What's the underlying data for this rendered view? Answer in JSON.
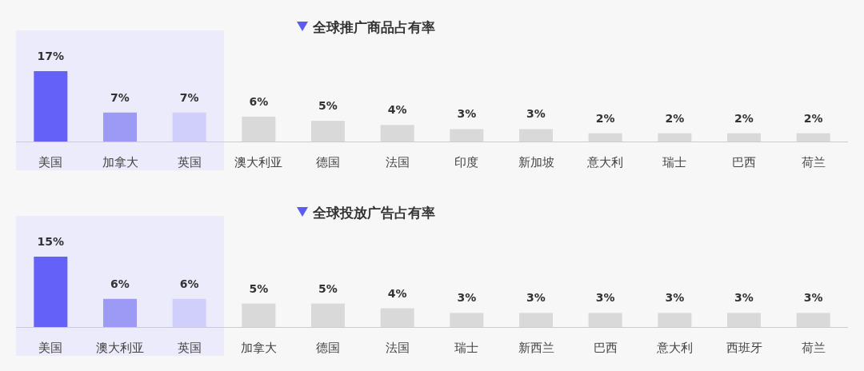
{
  "chart_data": [
    {
      "type": "bar",
      "title": "全球推广商品占有率",
      "categories": [
        "美国",
        "加拿大",
        "英国",
        "澳大利亚",
        "德国",
        "法国",
        "印度",
        "新加坡",
        "意大利",
        "瑞士",
        "巴西",
        "荷兰"
      ],
      "values": [
        17,
        7,
        7,
        6,
        5,
        4,
        3,
        3,
        2,
        2,
        2,
        2
      ],
      "value_labels": [
        "17%",
        "7%",
        "7%",
        "6%",
        "5%",
        "4%",
        "3%",
        "3%",
        "2%",
        "2%",
        "2%",
        "2%"
      ],
      "colors": [
        "#6361f7",
        "#9d9af6",
        "#d0cefa",
        "#d9d9d9",
        "#d9d9d9",
        "#d9d9d9",
        "#d9d9d9",
        "#d9d9d9",
        "#d9d9d9",
        "#d9d9d9",
        "#d9d9d9",
        "#d9d9d9"
      ],
      "bands": [
        {
          "axis": "x",
          "from": "美国",
          "to": "英国",
          "color": "#ecebfb"
        }
      ]
    },
    {
      "type": "bar",
      "title": "全球投放广告占有率",
      "categories": [
        "美国",
        "澳大利亚",
        "英国",
        "加拿大",
        "德国",
        "法国",
        "瑞士",
        "新西兰",
        "巴西",
        "意大利",
        "西班牙",
        "荷兰"
      ],
      "values": [
        15,
        6,
        6,
        5,
        5,
        4,
        3,
        3,
        3,
        3,
        3,
        3
      ],
      "value_labels": [
        "15%",
        "6%",
        "6%",
        "5%",
        "5%",
        "4%",
        "3%",
        "3%",
        "3%",
        "3%",
        "3%",
        "3%"
      ],
      "colors": [
        "#6361f7",
        "#9d9af6",
        "#d0cefa",
        "#d9d9d9",
        "#d9d9d9",
        "#d9d9d9",
        "#d9d9d9",
        "#d9d9d9",
        "#d9d9d9",
        "#d9d9d9",
        "#d9d9d9",
        "#d9d9d9"
      ],
      "bands": [
        {
          "axis": "x",
          "from": "美国",
          "to": "英国",
          "color": "#ecebfb"
        }
      ]
    }
  ]
}
